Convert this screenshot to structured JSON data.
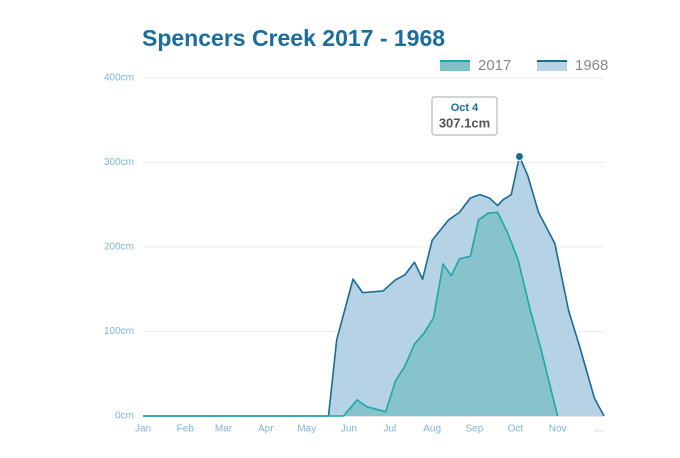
{
  "chart_data": {
    "type": "area",
    "title": "Spencers Creek 2017 - 1968",
    "annotations": [
      "Oct 4",
      "307.1cm"
    ],
    "xlim": [
      0,
      338
    ],
    "xticks": [
      {
        "value": 0,
        "label": "Jan"
      },
      {
        "value": 31,
        "label": "Feb"
      },
      {
        "value": 59,
        "label": "Mar"
      },
      {
        "value": 90,
        "label": "Apr"
      },
      {
        "value": 120,
        "label": "May"
      },
      {
        "value": 151,
        "label": "Jun"
      },
      {
        "value": 181,
        "label": "Jul"
      },
      {
        "value": 212,
        "label": "Aug"
      },
      {
        "value": 243,
        "label": "Sep"
      },
      {
        "value": 273,
        "label": "Oct"
      },
      {
        "value": 304,
        "label": "Nov"
      },
      {
        "value": 334,
        "label": "…"
      }
    ],
    "ylim": [
      0,
      400
    ],
    "yticks": [
      {
        "value": 0,
        "label": "0cm"
      },
      {
        "value": 100,
        "label": "100cm"
      },
      {
        "value": 200,
        "label": "200cm"
      },
      {
        "value": 300,
        "label": "300cm"
      },
      {
        "value": 400,
        "label": "400cm"
      }
    ],
    "grid": true,
    "legend": "top-right",
    "series": [
      {
        "name": "2017",
        "color": "#1fa6a8",
        "fill": "#7fc0c9",
        "x": [
          0,
          147,
          157,
          164,
          171,
          178,
          185,
          192,
          199,
          206,
          213,
          220,
          226,
          232,
          240,
          246,
          253,
          260,
          267,
          275,
          284,
          292,
          297,
          304
        ],
        "values": [
          0,
          0,
          19,
          11,
          8,
          5,
          41,
          59,
          85,
          98,
          116,
          180,
          166,
          186,
          189,
          232,
          240,
          241,
          218,
          185,
          125,
          78,
          45,
          0
        ]
      },
      {
        "name": "1968",
        "color": "#1b6b94",
        "fill": "#b5d3e5",
        "x": [
          0,
          136,
          142,
          154,
          161,
          176,
          185,
          192,
          199,
          205,
          212,
          218,
          224,
          232,
          240,
          247,
          254,
          260,
          264,
          270,
          276,
          282,
          290,
          302,
          312,
          320,
          331,
          338
        ],
        "values": [
          0,
          0,
          90,
          162,
          146,
          148,
          161,
          167,
          182,
          162,
          208,
          220,
          232,
          241,
          258,
          262,
          258,
          249,
          256,
          262,
          307.1,
          285,
          241,
          204,
          125,
          83,
          21,
          0
        ]
      }
    ]
  }
}
